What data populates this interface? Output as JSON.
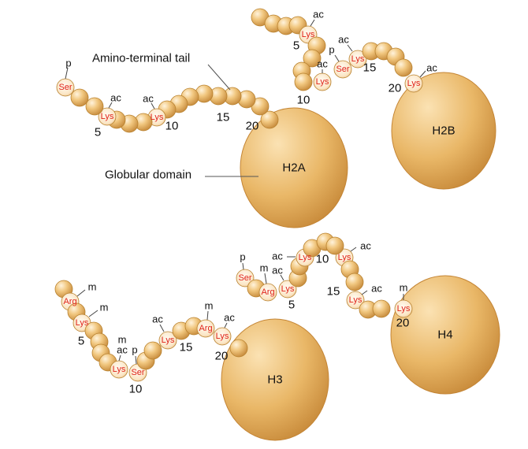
{
  "callouts": {
    "tail_label": "Amino-terminal tail",
    "domain_label": "Globular domain"
  },
  "histones": [
    {
      "name": "H2A",
      "residues": [
        {
          "aa": "Ser",
          "mod": "p"
        },
        {
          "aa": "Lys",
          "mod": "ac"
        },
        {
          "aa": "Lys",
          "mod": "ac"
        }
      ],
      "position_labels": [
        "5",
        "10",
        "15",
        "20"
      ]
    },
    {
      "name": "H2B",
      "residues": [
        {
          "aa": "Lys",
          "mod": "ac"
        },
        {
          "aa": "Lys",
          "mod": "ac"
        },
        {
          "aa": "Ser",
          "mod": "p"
        },
        {
          "aa": "Lys",
          "mod": "ac"
        },
        {
          "aa": "Lys",
          "mod": "ac"
        }
      ],
      "position_labels": [
        "5",
        "10",
        "15",
        "20"
      ]
    },
    {
      "name": "H3",
      "residues": [
        {
          "aa": "Arg",
          "mod": "m"
        },
        {
          "aa": "Lys",
          "mod": "m"
        },
        {
          "aa": "Lys",
          "mod": "ac"
        },
        {
          "aa": "Lys",
          "mod": "m"
        },
        {
          "aa": "Ser",
          "mod": "p"
        },
        {
          "aa": "Lys",
          "mod": "ac"
        },
        {
          "aa": "Arg",
          "mod": "m"
        },
        {
          "aa": "Lys",
          "mod": "ac"
        }
      ],
      "position_labels": [
        "5",
        "10",
        "15",
        "20"
      ]
    },
    {
      "name": "H4",
      "residues": [
        {
          "aa": "Ser",
          "mod": "p"
        },
        {
          "aa": "Arg",
          "mod": "m"
        },
        {
          "aa": "Lys",
          "mod": "ac"
        },
        {
          "aa": "Lys",
          "mod": "ac"
        },
        {
          "aa": "Lys",
          "mod": "ac"
        },
        {
          "aa": "Lys",
          "mod": "ac"
        },
        {
          "aa": "Lys",
          "mod": "ac"
        }
      ],
      "extra_mod_tags": [
        "m"
      ],
      "position_labels": [
        "5",
        "10",
        "15",
        "20"
      ]
    }
  ],
  "colors": {
    "bead": "#f2c98a",
    "bead_shadow": "#c98b3a",
    "globule": "#e8b56a",
    "residue_text": "#e0241b"
  }
}
